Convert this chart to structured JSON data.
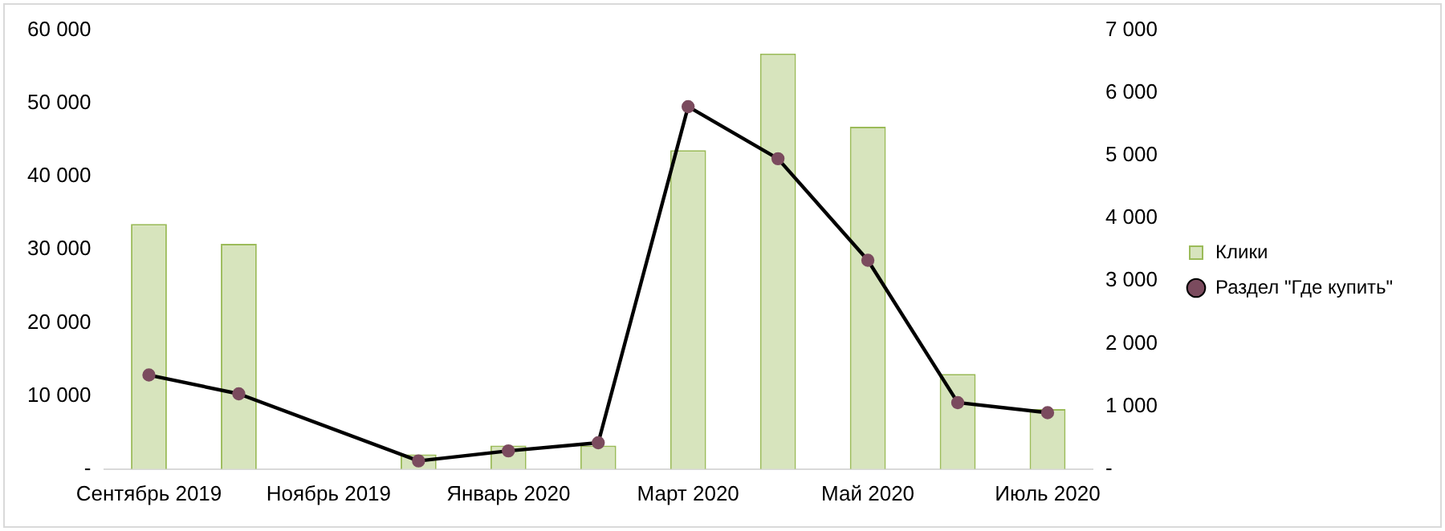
{
  "chart_data": {
    "type": "bar",
    "categories": [
      "Сентябрь 2019",
      null,
      "Ноябрь 2019",
      null,
      "Январь 2020",
      null,
      "Март 2020",
      null,
      "Май 2020",
      null,
      "Июль 2020"
    ],
    "series": [
      {
        "name": "Клики",
        "color": "#d7e4bd",
        "values": [
          33500,
          30800,
          null,
          2000,
          3200,
          3200,
          43600,
          56800,
          46800,
          13000,
          8200
        ]
      },
      {
        "name": "Раздел \"Где купить\"",
        "type": "line",
        "axis": "y2",
        "color": "#000000",
        "values": [
          1500,
          1200,
          null,
          130,
          290,
          420,
          5780,
          4950,
          3330,
          1060,
          900
        ]
      }
    ],
    "ylim": [
      0,
      60000
    ],
    "yticks": [
      {
        "value": 0,
        "label": "-"
      },
      {
        "value": 10000,
        "label": "10 000"
      },
      {
        "value": 20000,
        "label": "20 000"
      },
      {
        "value": 30000,
        "label": "30 000"
      },
      {
        "value": 40000,
        "label": "40 000"
      },
      {
        "value": 50000,
        "label": "50 000"
      },
      {
        "value": 60000,
        "label": "60 000"
      }
    ],
    "y2lim": [
      0,
      7000
    ],
    "y2ticks": [
      {
        "value": 0,
        "label": "-"
      },
      {
        "value": 1000,
        "label": "1 000"
      },
      {
        "value": 2000,
        "label": "2 000"
      },
      {
        "value": 3000,
        "label": "3 000"
      },
      {
        "value": 4000,
        "label": "4 000"
      },
      {
        "value": 5000,
        "label": "5 000"
      },
      {
        "value": 6000,
        "label": "6 000"
      },
      {
        "value": 7000,
        "label": "7 000"
      }
    ],
    "grid": false,
    "legend": "right",
    "marker": "circle"
  }
}
